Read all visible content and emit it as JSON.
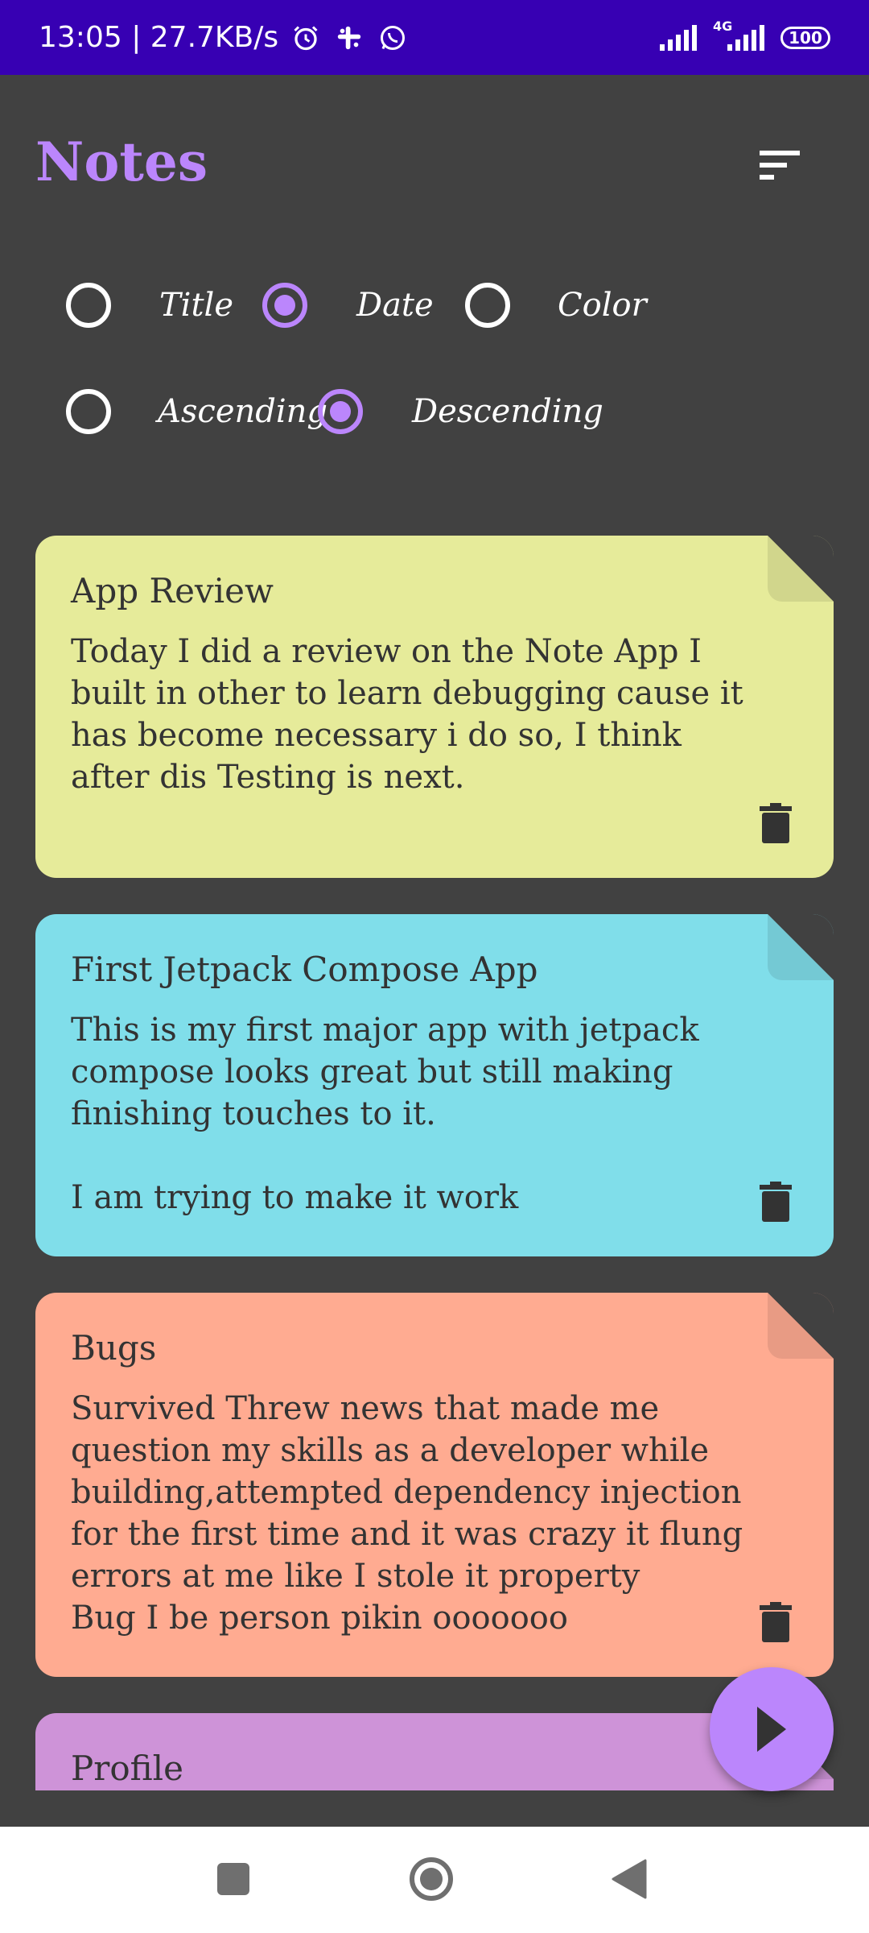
{
  "status_bar": {
    "time_speed": "13:05 | 27.7KB/s",
    "icons": [
      "alarm-icon",
      "slack-icon",
      "whatsapp-icon",
      "signal-icon",
      "4g-signal-icon",
      "battery-icon"
    ],
    "network": "4G",
    "battery": "100"
  },
  "header": {
    "title": "Notes",
    "sort_icon": "sort-icon"
  },
  "sort_options": {
    "order_by": [
      {
        "label": "Title",
        "selected": false
      },
      {
        "label": "Date",
        "selected": true
      },
      {
        "label": "Color",
        "selected": false
      }
    ],
    "direction": [
      {
        "label": "Ascending",
        "selected": false
      },
      {
        "label": "Descending",
        "selected": true
      }
    ]
  },
  "notes": [
    {
      "title": "App Review",
      "content": "Today I did a review on the Note App I built in other to learn debugging cause it has become necessary i do so, I think after dis Testing is next.",
      "color": "#E6EB9A",
      "fold_color": "#D1D68C"
    },
    {
      "title": "First Jetpack Compose App",
      "content": "This is my first major app with jetpack compose looks great but still making finishing touches to it.\n\nI am trying to make it work",
      "color": "#80DEEA",
      "fold_color": "#74C9D4"
    },
    {
      "title": "Bugs",
      "content": "Survived Threw news that made me question my skills as a developer while building,attempted dependency injection for the first time and it was crazy it flung errors at me like I stole it property\nBug I be person pikin ooooooo",
      "color": "#FFAB91",
      "fold_color": "#E89B84"
    },
    {
      "title": "Profile",
      "content": "",
      "color": "#CE93D8",
      "fold_color": "#BB86C4"
    }
  ],
  "fab": {
    "icon": "play-arrow-icon"
  },
  "nav_bar": {
    "icons": [
      "recents-square-icon",
      "home-circle-icon",
      "back-triangle-icon"
    ]
  },
  "colors": {
    "status_bar": "#3700B3",
    "background": "#414141",
    "accent": "#BB86FC"
  }
}
